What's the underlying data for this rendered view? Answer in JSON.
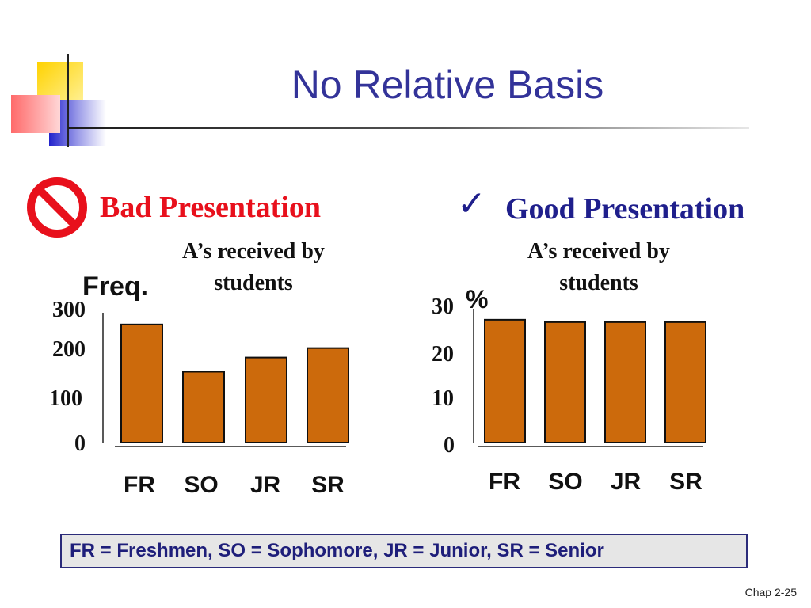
{
  "slide": {
    "title": "No Relative Basis",
    "footnote": "FR = Freshmen,  SO = Sophomore,  JR = Junior,  SR = Senior",
    "slide_number": "Chap 2-25",
    "colors": {
      "title": "#333399",
      "bad": "#e8101c",
      "good": "#1f1f8c",
      "bar": "#cc6a0c",
      "bar_edge": "#101010"
    }
  },
  "bad": {
    "heading": "Bad Presentation",
    "icon": "no-symbol-icon"
  },
  "good": {
    "heading": "Good Presentation",
    "icon": "checkmark-icon",
    "checkmark": "✓"
  },
  "chart_data": [
    {
      "type": "bar",
      "title": "A’s received by students",
      "ylabel": "Freq.",
      "xlabel": "",
      "categories": [
        "FR",
        "SO",
        "JR",
        "SR"
      ],
      "values": [
        250,
        150,
        180,
        200
      ],
      "yticks": [
        "0",
        "100",
        "200",
        "300"
      ],
      "ylim": [
        0,
        300
      ],
      "grid": false
    },
    {
      "type": "bar",
      "title": "A’s received by students",
      "ylabel": "%",
      "xlabel": "",
      "categories": [
        "FR",
        "SO",
        "JR",
        "SR"
      ],
      "values": [
        26,
        25.5,
        25.5,
        25.5
      ],
      "yticks": [
        "0",
        "10",
        "20",
        "30"
      ],
      "ylim": [
        0,
        30
      ],
      "grid": false
    }
  ]
}
